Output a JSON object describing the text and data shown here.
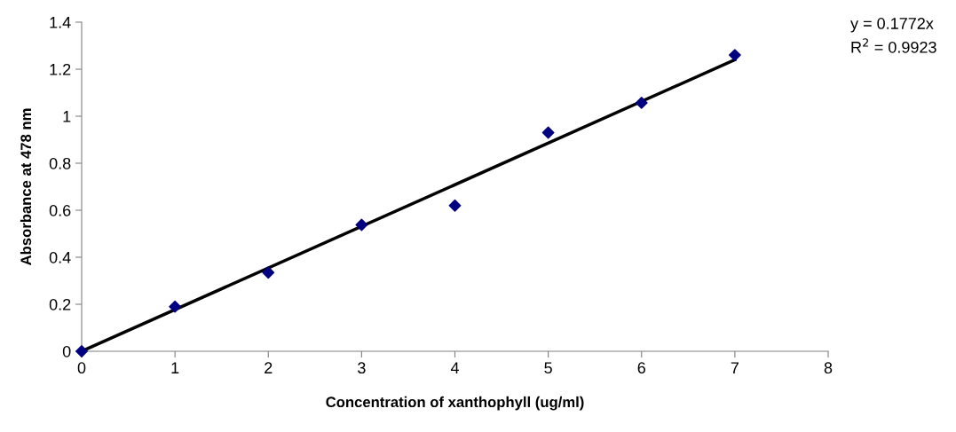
{
  "chart_data": {
    "type": "scatter",
    "xlabel": "Concentration of xanthophyll (ug/ml)",
    "ylabel": "Absorbance at 478 nm",
    "x": [
      0,
      1,
      2,
      3,
      4,
      5,
      6,
      7
    ],
    "series": [
      {
        "color": "#000080",
        "marker": "diamond",
        "values": [
          0,
          0.19,
          0.335,
          0.538,
          0.62,
          0.93,
          1.057,
          1.26
        ]
      },
      {
        "type": "line",
        "color": "#000000",
        "marker": "none",
        "line_style": "solid",
        "x": [
          0,
          7
        ],
        "values": [
          0,
          1.24
        ]
      }
    ],
    "xlim": [
      0,
      8
    ],
    "xticks": [
      0,
      1,
      2,
      3,
      4,
      5,
      6,
      7,
      8
    ],
    "ylim": [
      0,
      1.4
    ],
    "yticks": [
      0,
      0.2,
      0.4,
      0.6,
      0.8,
      1,
      1.2,
      1.4
    ],
    "annotations": [
      "y = 0.1772x",
      "R$^{2}$ = 0.9923"
    ],
    "grid": false,
    "legend": false
  }
}
